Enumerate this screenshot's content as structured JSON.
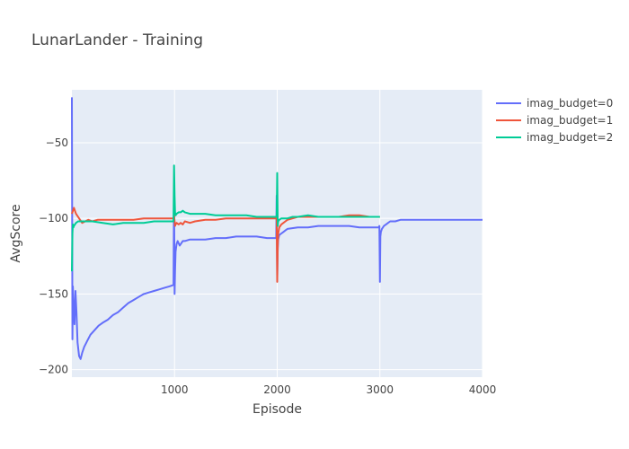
{
  "chart_data": {
    "type": "line",
    "title": "LunarLander - Training",
    "xlabel": "Episode",
    "ylabel": "AvgScore",
    "xlim": [
      0,
      4000
    ],
    "ylim": [
      -205,
      -15
    ],
    "xticks": [
      1000,
      2000,
      3000,
      4000
    ],
    "xtick_labels": [
      "1000",
      "2000",
      "3000",
      "4000"
    ],
    "yticks": [
      -50,
      -100,
      -150,
      -200
    ],
    "ytick_labels": [
      "−50",
      "−100",
      "−150",
      "−200"
    ],
    "grid": true,
    "legend_position": "top-right",
    "series": [
      {
        "name": "imag_budget=0",
        "color": "#636efa",
        "x": [
          0,
          5,
          10,
          15,
          25,
          35,
          45,
          55,
          70,
          85,
          100,
          120,
          150,
          180,
          220,
          260,
          300,
          350,
          400,
          450,
          500,
          550,
          600,
          650,
          700,
          750,
          800,
          850,
          900,
          950,
          990,
          995,
          1000,
          1005,
          1010,
          1020,
          1030,
          1050,
          1080,
          1100,
          1150,
          1200,
          1300,
          1400,
          1500,
          1600,
          1700,
          1800,
          1900,
          1990,
          1995,
          2000,
          2005,
          2010,
          2020,
          2040,
          2060,
          2080,
          2100,
          2200,
          2300,
          2400,
          2500,
          2600,
          2700,
          2800,
          2900,
          2990,
          2995,
          3000,
          3005,
          3010,
          3020,
          3040,
          3060,
          3080,
          3100,
          3150,
          3200,
          3300,
          3400,
          3500,
          3600,
          3700,
          3800,
          3900,
          4000
        ],
        "y": [
          -20,
          -180,
          -145,
          -155,
          -170,
          -148,
          -162,
          -182,
          -191,
          -193,
          -189,
          -185,
          -181,
          -177,
          -174,
          -171,
          -169,
          -167,
          -164,
          -162,
          -159,
          -156,
          -154,
          -152,
          -150,
          -149,
          -148,
          -147,
          -146,
          -145,
          -144,
          -80,
          -150,
          -135,
          -122,
          -117,
          -115,
          -118,
          -115,
          -115,
          -114,
          -114,
          -114,
          -113,
          -113,
          -112,
          -112,
          -112,
          -113,
          -113,
          -85,
          -138,
          -120,
          -114,
          -111,
          -110,
          -109,
          -108,
          -107,
          -106,
          -106,
          -105,
          -105,
          -105,
          -105,
          -106,
          -106,
          -106,
          -105,
          -142,
          -112,
          -109,
          -107,
          -105,
          -104,
          -103,
          -102,
          -102,
          -101,
          -101,
          -101,
          -101,
          -101,
          -101,
          -101,
          -101,
          -101
        ]
      },
      {
        "name": "imag_budget=1",
        "color": "#ef553b",
        "x": [
          0,
          10,
          20,
          30,
          40,
          60,
          80,
          100,
          130,
          160,
          200,
          250,
          300,
          400,
          500,
          600,
          700,
          800,
          900,
          990,
          995,
          1000,
          1005,
          1010,
          1020,
          1040,
          1060,
          1080,
          1100,
          1150,
          1200,
          1300,
          1400,
          1500,
          1600,
          1700,
          1800,
          1900,
          1990,
          1995,
          2000,
          2005,
          2010,
          2020,
          2040,
          2060,
          2080,
          2100,
          2150,
          2200,
          2300,
          2400,
          2500,
          2600,
          2700,
          2800,
          2900,
          3000
        ],
        "y": [
          -97,
          -95,
          -93,
          -95,
          -97,
          -99,
          -101,
          -103,
          -102,
          -101,
          -102,
          -101,
          -101,
          -101,
          -101,
          -101,
          -100,
          -100,
          -100,
          -100,
          -98,
          -102,
          -105,
          -104,
          -103,
          -104,
          -103,
          -104,
          -102,
          -103,
          -102,
          -101,
          -101,
          -100,
          -100,
          -100,
          -100,
          -100,
          -100,
          -100,
          -142,
          -118,
          -110,
          -106,
          -104,
          -103,
          -102,
          -101,
          -100,
          -99,
          -99,
          -99,
          -99,
          -99,
          -98,
          -98,
          -99,
          -99
        ]
      },
      {
        "name": "imag_budget=2",
        "color": "#00cc96",
        "x": [
          0,
          5,
          10,
          15,
          20,
          30,
          40,
          60,
          80,
          100,
          150,
          200,
          300,
          400,
          500,
          600,
          700,
          800,
          900,
          990,
          995,
          1000,
          1005,
          1010,
          1020,
          1040,
          1060,
          1080,
          1100,
          1150,
          1200,
          1300,
          1400,
          1500,
          1600,
          1700,
          1800,
          1900,
          1990,
          1995,
          2000,
          2005,
          2010,
          2020,
          2040,
          2060,
          2080,
          2100,
          2150,
          2200,
          2300,
          2400,
          2500,
          2600,
          2700,
          2800,
          2900,
          3000
        ],
        "y": [
          -135,
          -110,
          -104,
          -106,
          -105,
          -104,
          -103,
          -102,
          -102,
          -102,
          -102,
          -102,
          -103,
          -104,
          -103,
          -103,
          -103,
          -102,
          -102,
          -102,
          -65,
          -85,
          -96,
          -98,
          -97,
          -96,
          -96,
          -95,
          -96,
          -97,
          -97,
          -97,
          -98,
          -98,
          -98,
          -98,
          -99,
          -99,
          -99,
          -99,
          -70,
          -105,
          -102,
          -101,
          -100,
          -100,
          -100,
          -100,
          -99,
          -99,
          -98,
          -99,
          -99,
          -99,
          -99,
          -99,
          -99,
          -99
        ]
      }
    ]
  }
}
